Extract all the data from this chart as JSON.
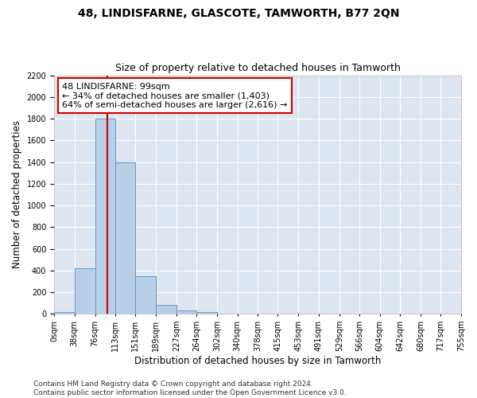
{
  "title": "48, LINDISFARNE, GLASCOTE, TAMWORTH, B77 2QN",
  "subtitle": "Size of property relative to detached houses in Tamworth",
  "xlabel": "Distribution of detached houses by size in Tamworth",
  "ylabel": "Number of detached properties",
  "bin_edges": [
    0,
    38,
    76,
    113,
    151,
    189,
    227,
    264,
    302,
    340,
    378,
    415,
    453,
    491,
    529,
    566,
    604,
    642,
    680,
    717,
    755
  ],
  "bar_heights": [
    20,
    420,
    1800,
    1400,
    350,
    80,
    35,
    20,
    5,
    2,
    1,
    0,
    0,
    0,
    0,
    0,
    0,
    0,
    0,
    0
  ],
  "bar_color": "#b8cfe8",
  "bar_edge_color": "#6699cc",
  "bg_color": "#dde6f0",
  "grid_color": "#ffffff",
  "property_size": 99,
  "vline_color": "#cc0000",
  "annotation_line1": "48 LINDISFARNE: 99sqm",
  "annotation_line2": "← 34% of detached houses are smaller (1,403)",
  "annotation_line3": "64% of semi-detached houses are larger (2,616) →",
  "annotation_box_color": "#ffffff",
  "annotation_box_edge": "#cc0000",
  "ylim": [
    0,
    2200
  ],
  "yticks": [
    0,
    200,
    400,
    600,
    800,
    1000,
    1200,
    1400,
    1600,
    1800,
    2000,
    2200
  ],
  "footer_text": "Contains HM Land Registry data © Crown copyright and database right 2024.\nContains public sector information licensed under the Open Government Licence v3.0.",
  "title_fontsize": 10,
  "subtitle_fontsize": 9,
  "xlabel_fontsize": 8.5,
  "ylabel_fontsize": 8.5,
  "tick_fontsize": 7,
  "annotation_fontsize": 8,
  "footer_fontsize": 6.5
}
